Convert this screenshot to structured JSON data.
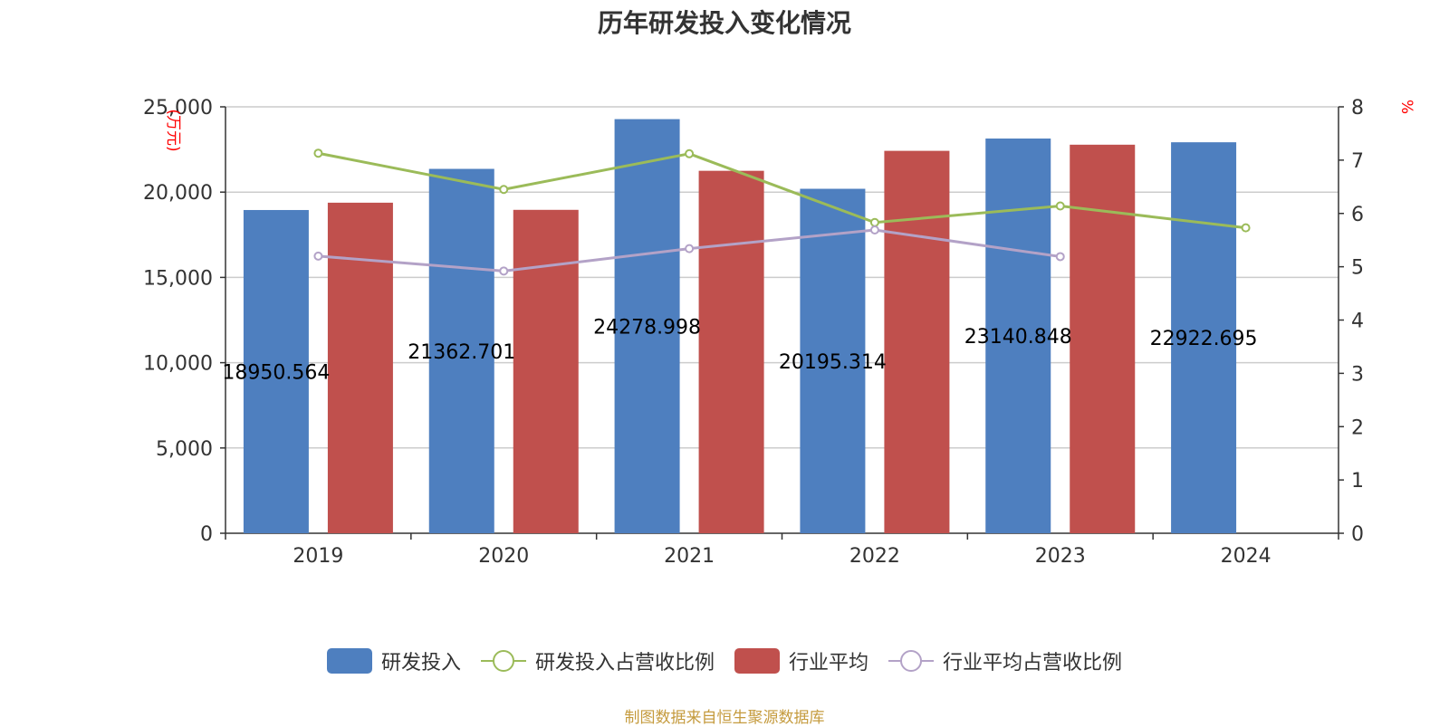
{
  "chart_data": {
    "type": "bar",
    "title": "历年研发投入变化情况",
    "categories": [
      "2019",
      "2020",
      "2021",
      "2022",
      "2023",
      "2024"
    ],
    "y_left": {
      "unit": "(万元)",
      "ylim": [
        0,
        25000
      ],
      "ticks": [
        0,
        5000,
        10000,
        15000,
        20000,
        25000
      ],
      "tick_labels": [
        "0",
        "5,000",
        "10,000",
        "15,000",
        "20,000",
        "25,000"
      ]
    },
    "y_right": {
      "unit": "%",
      "ylim": [
        0,
        8
      ],
      "ticks": [
        0,
        1,
        2,
        3,
        4,
        5,
        6,
        7,
        8
      ],
      "tick_labels": [
        "0",
        "1",
        "2",
        "3",
        "4",
        "5",
        "6",
        "7",
        "8"
      ]
    },
    "grid": true,
    "legend_position": "bottom",
    "series": [
      {
        "name": "研发投入",
        "kind": "bar",
        "axis": "left",
        "color": "#4e7fbf",
        "values": [
          18950.564,
          21362.701,
          24278.998,
          20195.314,
          23140.848,
          22922.695
        ],
        "labels": [
          "18950.564",
          "21362.701",
          "24278.998",
          "20195.314",
          "23140.848",
          "22922.695"
        ]
      },
      {
        "name": "研发投入占营收比例",
        "kind": "line",
        "axis": "right",
        "color": "#9bbb59",
        "values": [
          7.13,
          6.45,
          7.12,
          5.83,
          6.14,
          5.73
        ]
      },
      {
        "name": "行业平均",
        "kind": "bar",
        "axis": "left",
        "color": "#c0504d",
        "values": [
          19380,
          18960,
          21250,
          22420,
          22780,
          null
        ]
      },
      {
        "name": "行业平均占营收比例",
        "kind": "line",
        "axis": "right",
        "color": "#b3a2c7",
        "values": [
          5.2,
          4.92,
          5.34,
          5.69,
          5.19,
          null
        ]
      }
    ]
  },
  "footer": {
    "source": "制图数据来自恒生聚源数据库"
  }
}
